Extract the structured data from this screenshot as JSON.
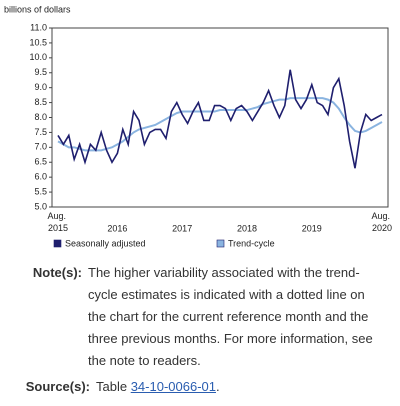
{
  "chart_data": {
    "type": "line",
    "y_label": "billions of dollars",
    "categories": [
      "Aug. 2015",
      null,
      null,
      null,
      null,
      null,
      null,
      null,
      null,
      null,
      null,
      "2016",
      null,
      null,
      null,
      null,
      null,
      null,
      null,
      null,
      null,
      null,
      null,
      "2017",
      null,
      null,
      null,
      null,
      null,
      null,
      null,
      null,
      null,
      null,
      null,
      "2018",
      null,
      null,
      null,
      null,
      null,
      null,
      null,
      null,
      null,
      null,
      null,
      "2019",
      null,
      null,
      null,
      null,
      null,
      null,
      null,
      null,
      null,
      null,
      null,
      null,
      "Aug. 2020"
    ],
    "series": [
      {
        "name": "Seasonally adjusted",
        "color": "#1f1f6e",
        "values": [
          7.4,
          7.1,
          7.4,
          6.6,
          7.1,
          6.5,
          7.1,
          6.9,
          7.5,
          6.9,
          6.5,
          6.8,
          7.6,
          7.1,
          8.2,
          7.9,
          7.1,
          7.5,
          7.6,
          7.6,
          7.3,
          8.2,
          8.5,
          8.1,
          7.8,
          8.2,
          8.5,
          7.9,
          7.9,
          8.4,
          8.4,
          8.3,
          7.9,
          8.3,
          8.4,
          8.2,
          7.9,
          8.2,
          8.5,
          8.9,
          8.4,
          8.0,
          8.4,
          9.6,
          8.6,
          8.3,
          8.6,
          9.1,
          8.5,
          8.4,
          8.1,
          9.0,
          9.3,
          8.4,
          7.2,
          6.3,
          7.5,
          8.1,
          7.9,
          8.0,
          8.1
        ]
      },
      {
        "name": "Trend-cycle",
        "color": "#8ab4e0",
        "values": [
          7.2,
          7.1,
          7.0,
          7.0,
          6.95,
          6.9,
          6.9,
          6.9,
          6.9,
          6.95,
          7.0,
          7.1,
          7.2,
          7.35,
          7.5,
          7.6,
          7.65,
          7.7,
          7.75,
          7.85,
          7.95,
          8.05,
          8.15,
          8.2,
          8.2,
          8.2,
          8.2,
          8.2,
          8.2,
          8.2,
          8.25,
          8.25,
          8.25,
          8.25,
          8.25,
          8.25,
          8.3,
          8.35,
          8.45,
          8.5,
          8.55,
          8.6,
          8.6,
          8.65,
          8.65,
          8.65,
          8.65,
          8.65,
          8.65,
          8.65,
          8.6,
          8.5,
          8.3,
          8.0,
          7.75,
          7.55,
          7.5,
          7.55,
          7.65,
          7.75,
          7.85
        ]
      }
    ],
    "ylim": [
      5.0,
      11.0
    ],
    "yticks": [
      {
        "value": 5,
        "label": "5.0"
      },
      5.5,
      {
        "value": 6,
        "label": "6.0"
      },
      6.5,
      {
        "value": 7,
        "label": "7.0"
      },
      7.5,
      {
        "value": 8,
        "label": "8.0"
      },
      8.5,
      {
        "value": 9,
        "label": "9.0"
      },
      9.5,
      {
        "value": 10,
        "label": "10.0"
      },
      10.5,
      {
        "value": 11,
        "label": "11.0"
      }
    ],
    "grid": false
  },
  "note": {
    "label": "Note(s):",
    "text": "The higher variability associated with the trend-cycle estimates is indicated with a dotted line on the chart for the current reference month and the three previous months. For more information, see the note to readers."
  },
  "source": {
    "label": "Source(s):",
    "prefix": "Table ",
    "link": "34-10-0066-01",
    "suffix": "."
  }
}
